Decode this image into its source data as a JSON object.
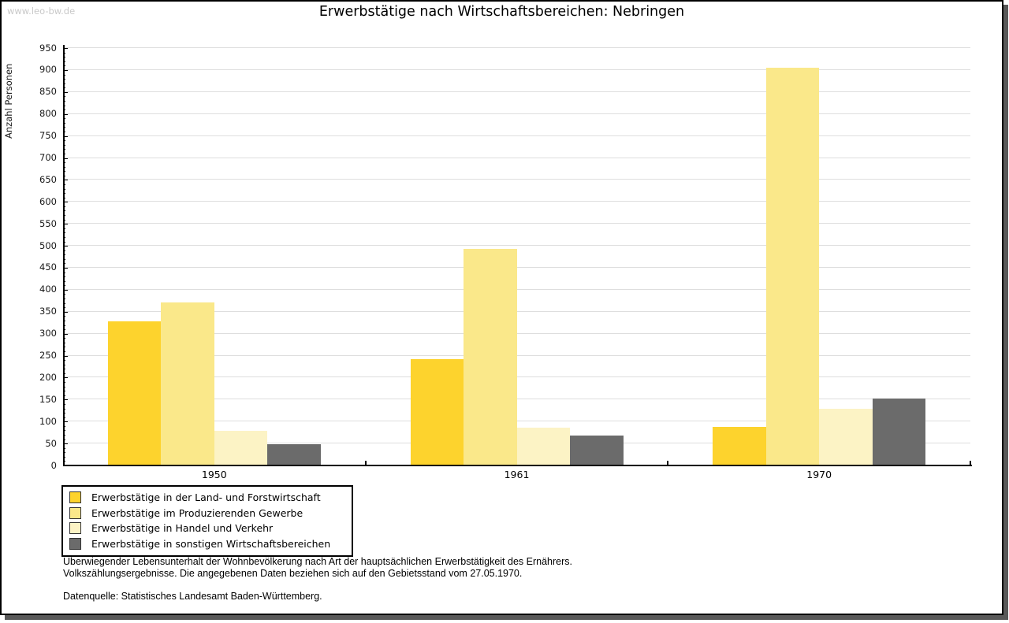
{
  "watermark": "www.leo-bw.de",
  "title": "Erwerbstätige nach Wirtschaftsbereichen: Nebringen",
  "chart_data": {
    "type": "bar",
    "title": "Erwerbstätige nach Wirtschaftsbereichen: Nebringen",
    "xlabel": "",
    "ylabel": "Anzahl Personen",
    "ylim": [
      0,
      950
    ],
    "ytick_step": 50,
    "yminor_step": 10,
    "yticks": [
      0,
      50,
      100,
      150,
      200,
      250,
      300,
      350,
      400,
      450,
      500,
      550,
      600,
      650,
      700,
      750,
      800,
      850,
      900,
      950
    ],
    "grid": true,
    "legend_position": "bottom-left",
    "categories": [
      "1950",
      "1961",
      "1970"
    ],
    "series": [
      {
        "name": "Erwerbstätige in der Land- und Forstwirtschaft",
        "color": "#FDD32D",
        "values": [
          328,
          242,
          88
        ]
      },
      {
        "name": "Erwerbstätige im Produzierenden Gewerbe",
        "color": "#FAE88A",
        "values": [
          371,
          493,
          905
        ]
      },
      {
        "name": "Erwerbstätige in Handel und Verkehr",
        "color": "#FCF3C5",
        "values": [
          79,
          86,
          129
        ]
      },
      {
        "name": "Erwerbstätige in sonstigen Wirtschaftsbereichen",
        "color": "#6B6B6B",
        "values": [
          49,
          69,
          152
        ]
      }
    ]
  },
  "footer": {
    "line1": "Überwiegender Lebensunterhalt der Wohnbevölkerung nach Art der hauptsächlichen Erwerbstätigkeit des Ernährers.",
    "line2": "Volkszählungsergebnisse. Die angegebenen Daten beziehen sich auf den Gebietsstand vom 27.05.1970.",
    "source": "Datenquelle: Statistisches Landesamt Baden-Württemberg."
  },
  "colors": {
    "shadow": "#595959",
    "gridline": "#dedede",
    "watermark": "#c9c9c9"
  }
}
